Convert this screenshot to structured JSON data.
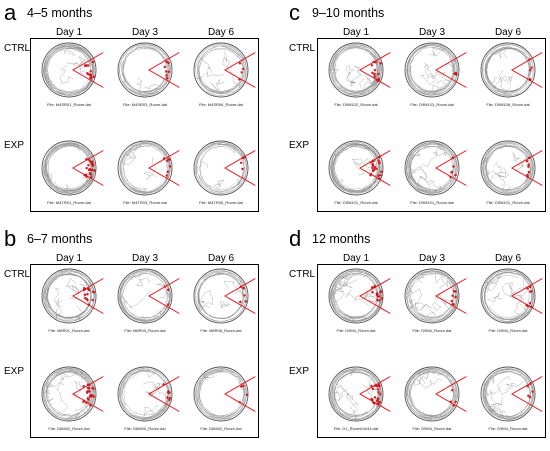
{
  "days": [
    "Day 1",
    "Day 3",
    "Day 6"
  ],
  "rows": [
    "CTRL",
    "EXP"
  ],
  "panels": [
    {
      "letter": "a",
      "title": "4–5 months",
      "files": [
        [
          "File: M4SR01_Room.dat",
          "File: M4SR03_Room.dat",
          "File: M4SR06_Room.dat"
        ],
        [
          "File: M4TR01_Room.dat",
          "File: M4TR03_Room.dat",
          "File: M4TR06_Room.dat"
        ]
      ]
    },
    {
      "letter": "b",
      "title": "6–7 months",
      "files": [
        [
          "File: M6R01_Room.dat",
          "File: M6R03_Room.dat",
          "File: M6R06_Room.dat"
        ],
        [
          "File: D6M40_Room.dat",
          "File: D6M40_Room.dat",
          "File: D6M40_Room.dat"
        ]
      ]
    },
    {
      "letter": "c",
      "title": "9–10 months",
      "files": [
        [
          "File: D9M102_Room.dat",
          "File: D9M103_Room.dat",
          "File: D9M106_Room.dat"
        ],
        [
          "File: D9M101_Room.dat",
          "File: D9M101_Room.dat",
          "File: D9M101_Room.dat"
        ]
      ]
    },
    {
      "letter": "d",
      "title": "12 months",
      "files": [
        [
          "File: D9M4_Room.dat",
          "File: D9M4_Room.dat",
          "File: D9M4_Room.dat"
        ],
        [
          "File: D1_Room04444.dat",
          "File: D9M4_Room.dat",
          "File: D9M4_Room.dat"
        ]
      ]
    }
  ],
  "colors": {
    "track": "#8c8c8c",
    "shock_zone": "#e8141b",
    "frame": "#000000"
  }
}
